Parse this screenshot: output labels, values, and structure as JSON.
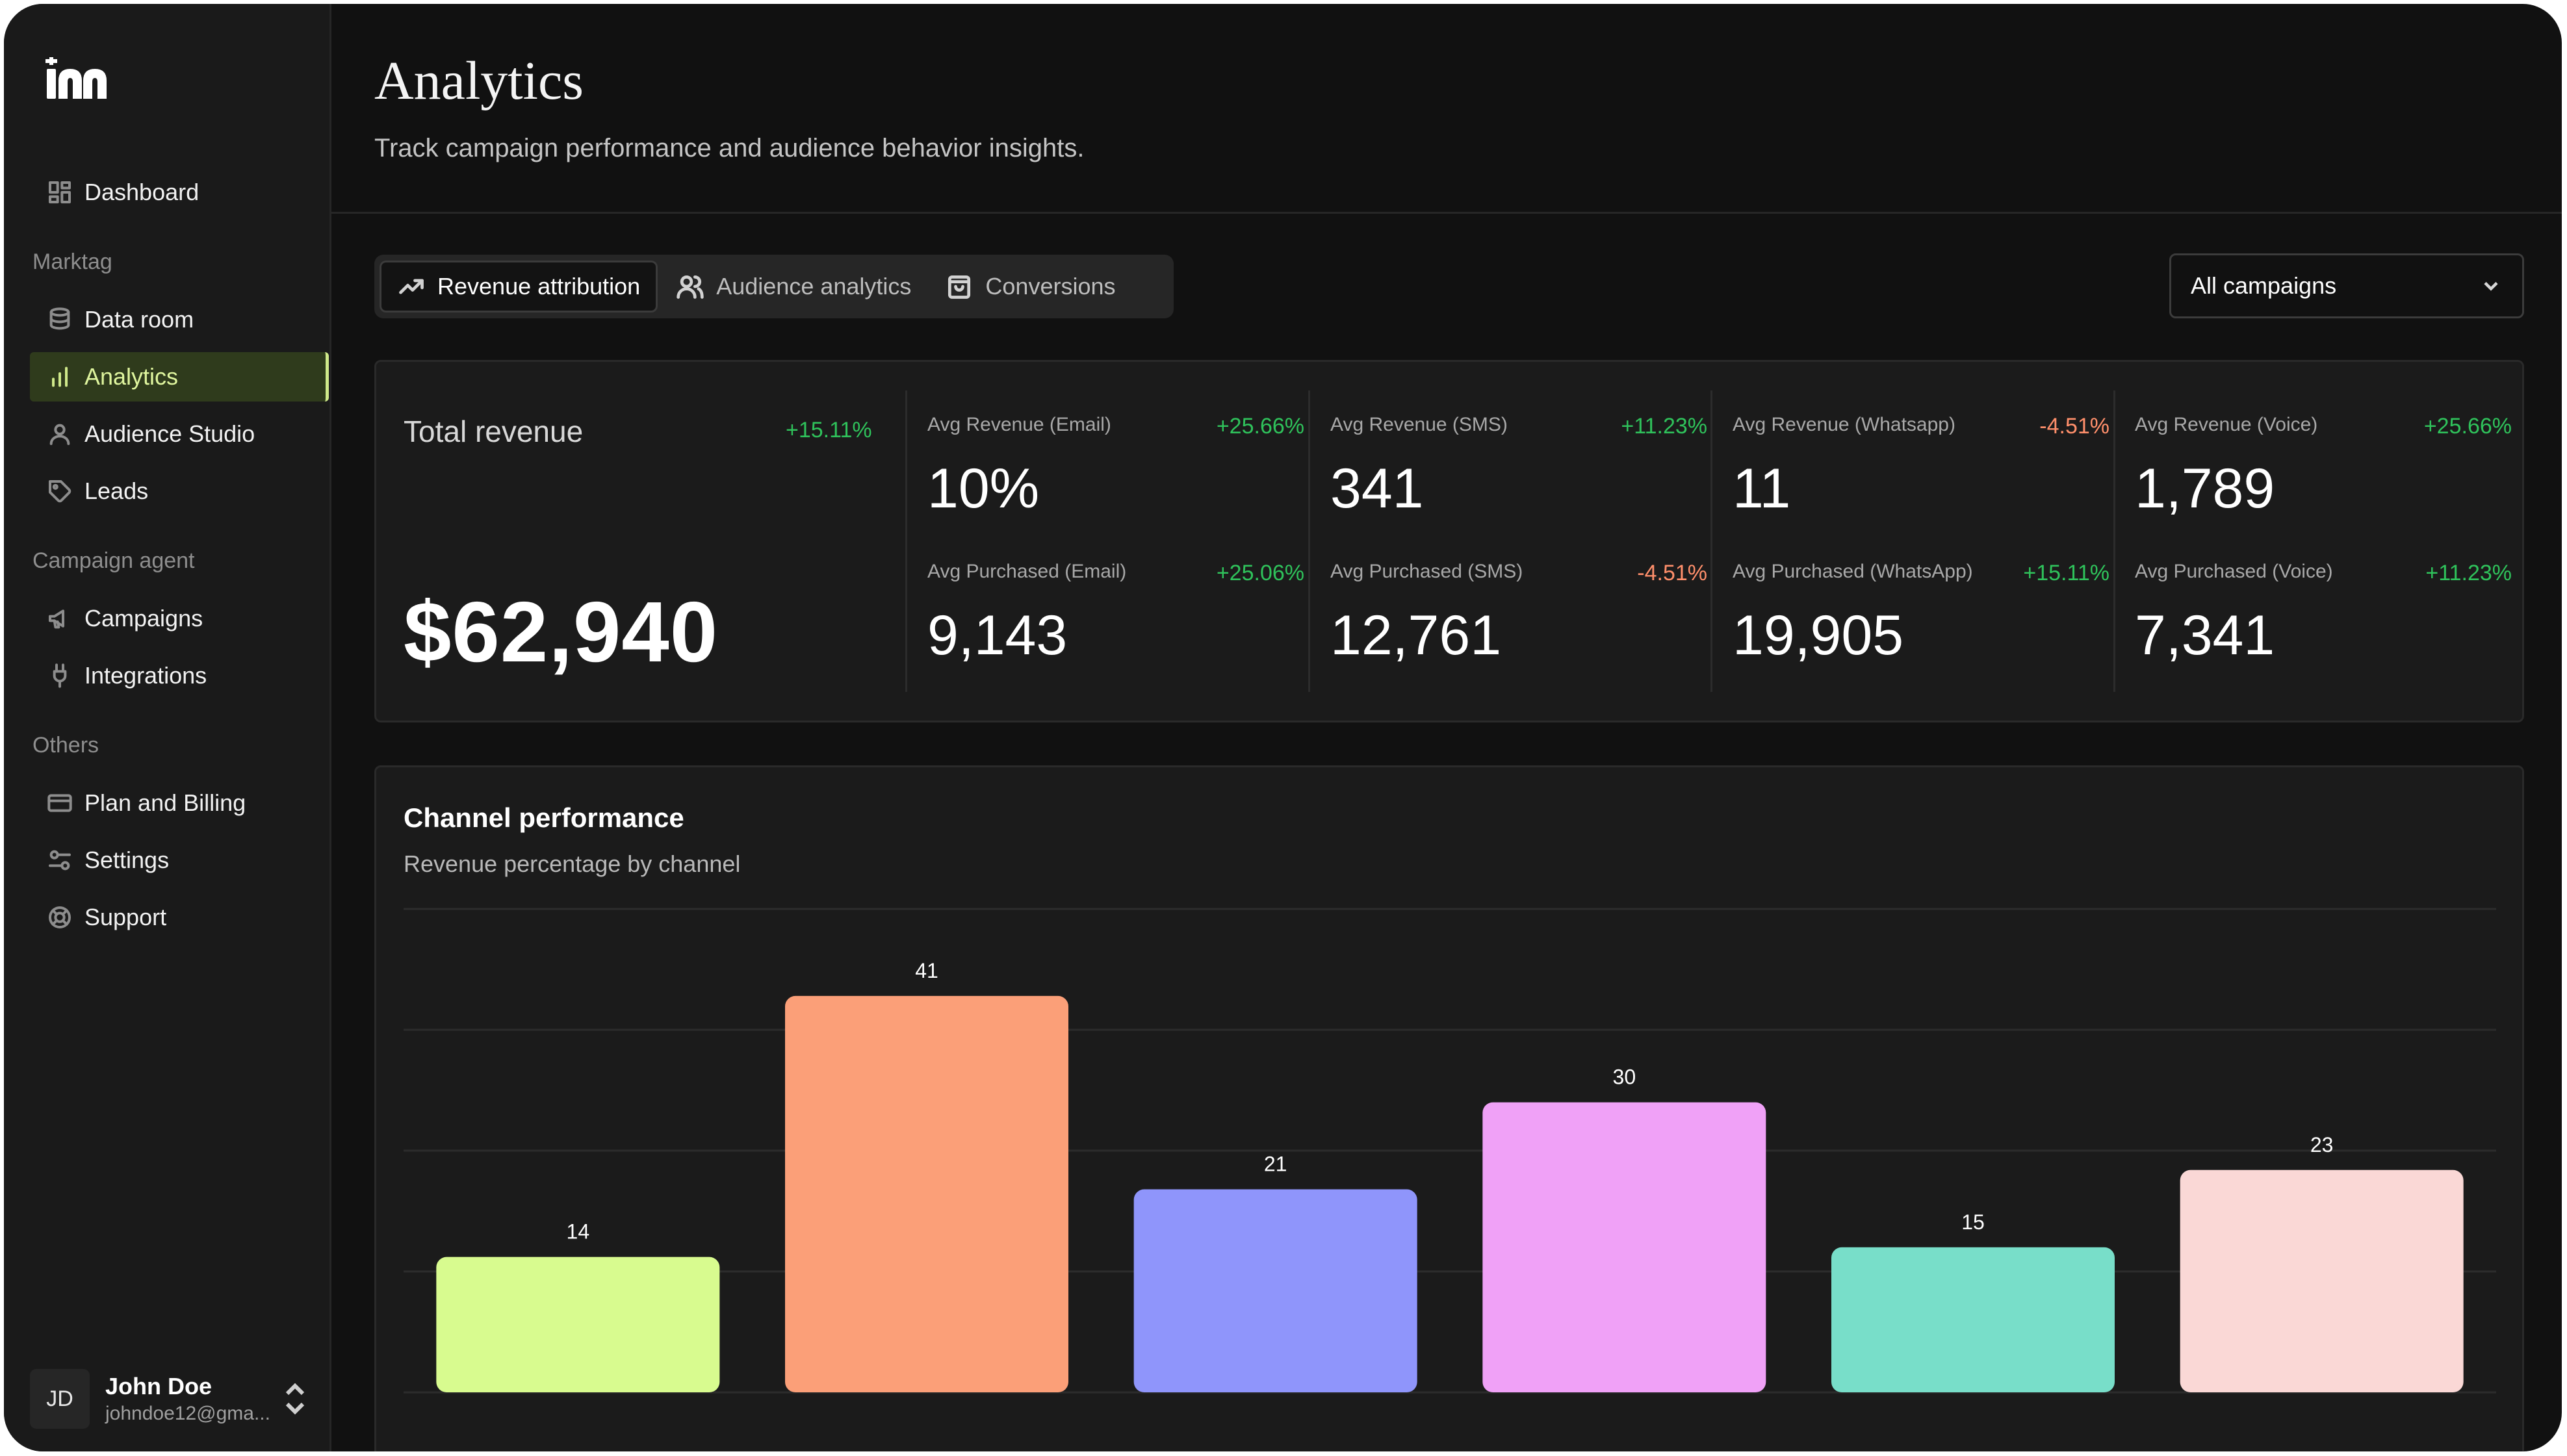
{
  "sidebar": {
    "nav_top": [
      {
        "label": "Dashboard",
        "icon": "dashboard-icon"
      }
    ],
    "sections": [
      {
        "label": "Marktag",
        "items": [
          {
            "label": "Data room",
            "icon": "database-icon"
          },
          {
            "label": "Analytics",
            "icon": "bar-chart-icon",
            "active": true
          },
          {
            "label": "Audience Studio",
            "icon": "user-icon"
          },
          {
            "label": "Leads",
            "icon": "tag-icon"
          }
        ]
      },
      {
        "label": "Campaign agent",
        "items": [
          {
            "label": "Campaigns",
            "icon": "megaphone-icon"
          },
          {
            "label": "Integrations",
            "icon": "plug-icon"
          }
        ]
      },
      {
        "label": "Others",
        "items": [
          {
            "label": "Plan and Billing",
            "icon": "credit-card-icon"
          },
          {
            "label": "Settings",
            "icon": "sliders-icon"
          },
          {
            "label": "Support",
            "icon": "lifebuoy-icon"
          }
        ]
      }
    ],
    "user": {
      "initials": "JD",
      "name": "John Doe",
      "email": "johndoe12@gma..."
    }
  },
  "header": {
    "title": "Analytics",
    "subtitle": "Track campaign performance and audience behavior insights."
  },
  "tabs": [
    {
      "label": "Revenue attribution",
      "icon": "trending-up-icon",
      "active": true
    },
    {
      "label": "Audience analytics",
      "icon": "users-icon"
    },
    {
      "label": "Conversions",
      "icon": "shopping-bag-icon"
    }
  ],
  "filter": {
    "selected": "All campaigns"
  },
  "metrics": {
    "total": {
      "label": "Total revenue",
      "change": "+15.11%",
      "value": "$62,940"
    },
    "cells": [
      {
        "label": "Avg Revenue (Email)",
        "change": "+25.66%",
        "trend": "up",
        "value": "10%"
      },
      {
        "label": "Avg Revenue (SMS)",
        "change": "+11.23%",
        "trend": "up",
        "value": "341"
      },
      {
        "label": "Avg Revenue (Whatsapp)",
        "change": "-4.51%",
        "trend": "down",
        "value": "11"
      },
      {
        "label": "Avg Revenue (Voice)",
        "change": "+25.66%",
        "trend": "up",
        "value": "1,789"
      },
      {
        "label": "Avg Purchased (Email)",
        "change": "+25.06%",
        "trend": "up",
        "value": "9,143"
      },
      {
        "label": "Avg Purchased (SMS)",
        "change": "-4.51%",
        "trend": "down",
        "value": "12,761"
      },
      {
        "label": "Avg Purchased (WhatsApp)",
        "change": "+15.11%",
        "trend": "up",
        "value": "19,905"
      },
      {
        "label": "Avg Purchased (Voice)",
        "change": "+11.23%",
        "trend": "up",
        "value": "7,341"
      }
    ]
  },
  "chart": {
    "title": "Channel performance",
    "subtitle": "Revenue percentage by channel"
  },
  "chart_data": {
    "type": "bar",
    "title": "Channel performance",
    "subtitle": "Revenue percentage by channel",
    "categories": [
      "",
      "",
      "",
      "",
      "",
      ""
    ],
    "values": [
      14,
      41,
      21,
      30,
      15,
      23
    ],
    "colors": [
      "#d8fb8f",
      "#fb9f78",
      "#8f95fb",
      "#f0a1f7",
      "#78dec9",
      "#fad8d6"
    ],
    "ylim": [
      0,
      50
    ],
    "grid": true
  }
}
